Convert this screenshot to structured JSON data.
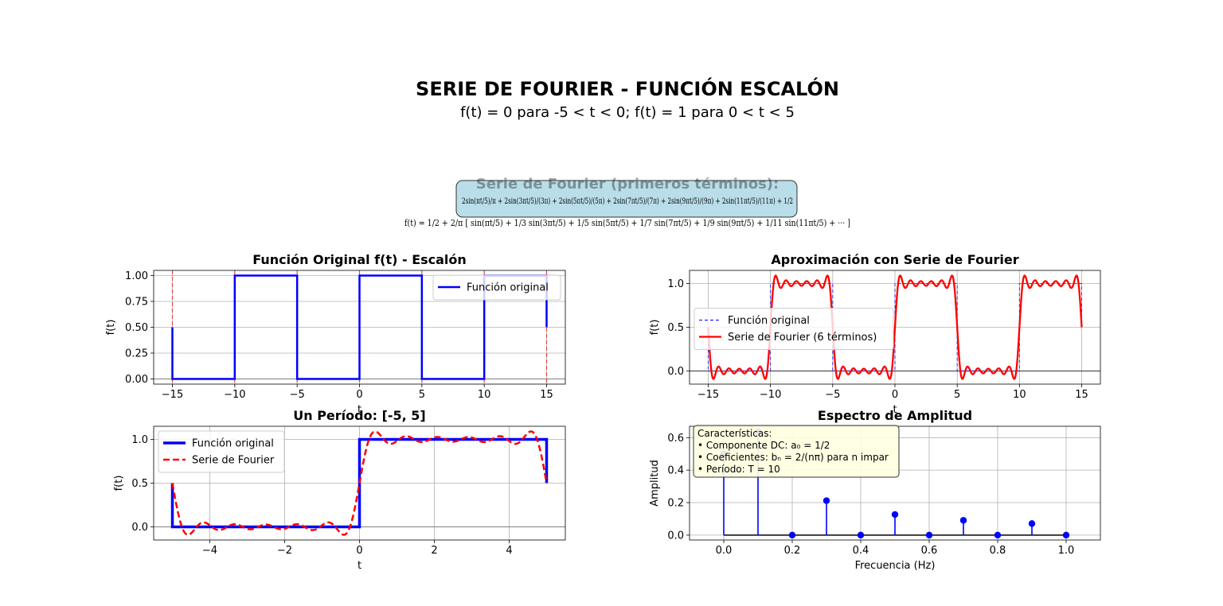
{
  "title": "SERIE DE FOURIER - FUNCIÓN ESCALÓN",
  "subtitle": "f(t) = 0 para -5 < t < 0;  f(t) = 1 para 0 < t < 5",
  "colors": {
    "original": "#0000ff",
    "fourier": "#ff0000",
    "discontinuity": "#ff0000",
    "zero_line": "#808080",
    "formula_box": "#add8e6",
    "info_box": "#ffffe0",
    "grid": "#b0b0b0"
  },
  "formula_box": {
    "heading": "Serie de Fourier (primeros términos):",
    "expression": "2sin(πt/5)/π + 2sin(3πt/5)/(3π) + 2sin(5πt/5)/(5π) + 2sin(7πt/5)/(7π) + 2sin(9πt/5)/(9π) + 2sin(11πt/5)/(11π) + 1/2",
    "series_line": "f(t) = 1/2 + 2/π [ sin(πt/5) + 1/3 sin(3πt/5) + 1/5 sin(5πt/5) + 1/7 sin(7πt/5) + 1/9 sin(9πt/5) + 1/11 sin(11πt/5) + ··· ]"
  },
  "info_box": {
    "lines": [
      "Características:",
      "• Componente DC: a₀ = 1/2",
      "• Coeficientes: bₙ = 2/(nπ) para n impar",
      "• Período: T = 10"
    ]
  },
  "chart_data": [
    {
      "id": "original",
      "type": "line",
      "title": "Función Original f(t) - Escalón",
      "xlabel": "t",
      "ylabel": "f(t)",
      "xlim": [
        -16.5,
        16.5
      ],
      "ylim": [
        -0.05,
        1.05
      ],
      "xticks": [
        -15,
        -10,
        -5,
        0,
        5,
        10,
        15
      ],
      "xtick_labels": [
        "−15",
        "−10",
        "−5",
        "0",
        "5",
        "10",
        "15"
      ],
      "yticks": [
        0,
        0.25,
        0.5,
        0.75,
        1
      ],
      "ytick_labels": [
        "0.00",
        "0.25",
        "0.50",
        "0.75",
        "1.00"
      ],
      "grid": true,
      "legend_position": "upper right",
      "period": 10,
      "discontinuities": [
        -15,
        -10,
        -5,
        0,
        5,
        10,
        15
      ],
      "series": [
        {
          "name": "Función original",
          "function": "square_wave",
          "x_range": [
            -15,
            15
          ],
          "low": 0,
          "high": 1,
          "period": 10,
          "value_at_jump": 0.5,
          "color": "#0000ff"
        }
      ]
    },
    {
      "id": "approx",
      "type": "line",
      "title": "Aproximación con Serie de Fourier",
      "xlabel": "t",
      "ylabel": "f(t)",
      "xlim": [
        -16.5,
        16.5
      ],
      "ylim": [
        -0.15,
        1.15
      ],
      "xticks": [
        -15,
        -10,
        -5,
        0,
        5,
        10,
        15
      ],
      "xtick_labels": [
        "−15",
        "−10",
        "−5",
        "0",
        "5",
        "10",
        "15"
      ],
      "yticks": [
        0,
        0.5,
        1
      ],
      "ytick_labels": [
        "0.0",
        "0.5",
        "1.0"
      ],
      "grid": true,
      "legend_position": "center left",
      "series": [
        {
          "name": "Función original",
          "function": "square_wave",
          "style": "dashed-thin",
          "color": "#0000ff"
        },
        {
          "name": "Serie de Fourier (6 términos)",
          "function": "fourier_partial_sum",
          "dc": 0.5,
          "odd_harmonics": [
            1,
            3,
            5,
            7,
            9,
            11
          ],
          "period": 10,
          "color": "#ff0000"
        }
      ]
    },
    {
      "id": "period",
      "type": "line",
      "title": "Un Período: [-5, 5]",
      "xlabel": "t",
      "ylabel": "f(t)",
      "xlim": [
        -5.5,
        5.5
      ],
      "ylim": [
        -0.15,
        1.15
      ],
      "xticks": [
        -4,
        -2,
        0,
        2,
        4
      ],
      "xtick_labels": [
        "−4",
        "−2",
        "0",
        "2",
        "4"
      ],
      "yticks": [
        0,
        0.5,
        1
      ],
      "ytick_labels": [
        "0.0",
        "0.5",
        "1.0"
      ],
      "grid": true,
      "legend_position": "upper left",
      "series": [
        {
          "name": "Función original",
          "function": "square_wave",
          "x_range": [
            -5,
            5
          ],
          "style": "thick",
          "color": "#0000ff"
        },
        {
          "name": "Serie de Fourier",
          "function": "fourier_partial_sum",
          "x_range": [
            -5,
            5
          ],
          "style": "dashed",
          "color": "#ff0000"
        }
      ]
    },
    {
      "id": "spectrum",
      "type": "stem",
      "title": "Espectro de Amplitud",
      "xlabel": "Frecuencia (Hz)",
      "ylabel": "Amplitud",
      "xlim": [
        -0.1,
        1.1
      ],
      "ylim": [
        -0.03,
        0.67
      ],
      "xticks": [
        0,
        0.2,
        0.4,
        0.6,
        0.8,
        1.0
      ],
      "xtick_labels": [
        "0.0",
        "0.2",
        "0.4",
        "0.6",
        "0.8",
        "1.0"
      ],
      "yticks": [
        0,
        0.2,
        0.4,
        0.6
      ],
      "ytick_labels": [
        "0.0",
        "0.2",
        "0.4",
        "0.6"
      ],
      "grid": true,
      "x": [
        0.0,
        0.1,
        0.2,
        0.3,
        0.4,
        0.5,
        0.6,
        0.7,
        0.8,
        0.9,
        1.0
      ],
      "values": [
        0.5,
        0.637,
        0.0,
        0.212,
        0.0,
        0.127,
        0.0,
        0.091,
        0.0,
        0.071,
        0.0
      ],
      "color": "#0000ff"
    }
  ]
}
